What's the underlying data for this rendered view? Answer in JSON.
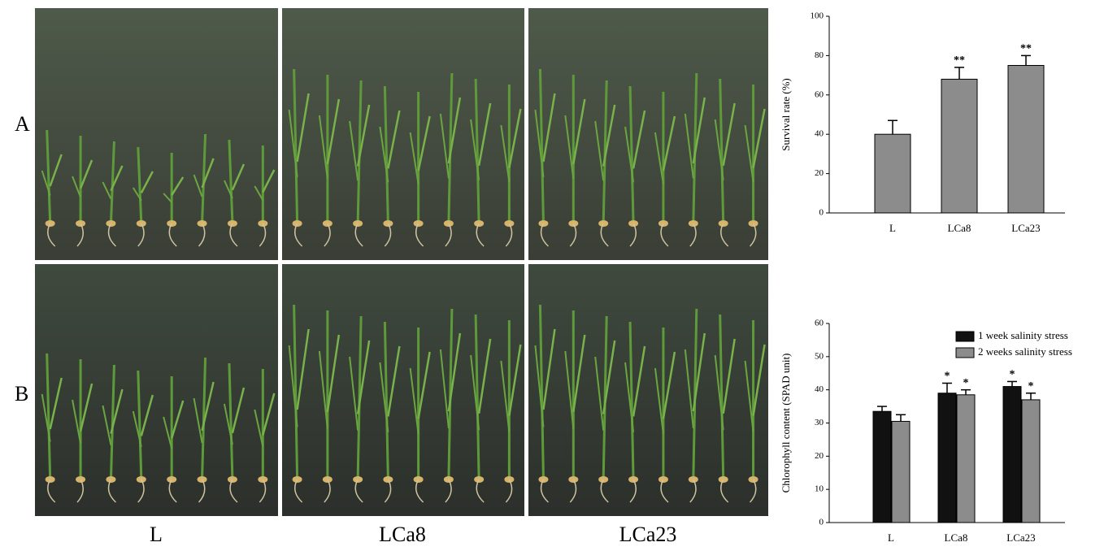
{
  "row_labels": [
    "A",
    "B"
  ],
  "column_labels": [
    "L",
    "LCa8",
    "LCa23"
  ],
  "chart_data": [
    {
      "type": "bar",
      "y_label": "Survival rate (%)",
      "categories": [
        "L",
        "LCa8",
        "LCa23"
      ],
      "series": [
        {
          "color": "#8c8c8c",
          "values": [
            40,
            68,
            75
          ],
          "errors": [
            7,
            6,
            5
          ],
          "significance": [
            null,
            "**",
            "**"
          ]
        }
      ],
      "ylim": [
        0,
        100
      ],
      "yticks": [
        0,
        20,
        40,
        60,
        80,
        100
      ]
    },
    {
      "type": "bar",
      "y_label": "Chlorophyll content (SPAD unit)",
      "categories": [
        "L",
        "LCa8",
        "LCa23"
      ],
      "series": [
        {
          "name": "1 week salinity stress",
          "color": "#111111",
          "values": [
            33.5,
            39,
            41
          ],
          "errors": [
            1.5,
            3,
            1.5
          ],
          "significance": [
            null,
            "*",
            "*"
          ]
        },
        {
          "name": "2 weeks salinity stress",
          "color": "#8c8c8c",
          "values": [
            30.5,
            38.5,
            37
          ],
          "errors": [
            2,
            1.5,
            2
          ],
          "significance": [
            null,
            "*",
            "*"
          ]
        }
      ],
      "ylim": [
        0,
        60
      ],
      "yticks": [
        0,
        10,
        20,
        30,
        40,
        50,
        60
      ],
      "legend": "upper right"
    }
  ]
}
